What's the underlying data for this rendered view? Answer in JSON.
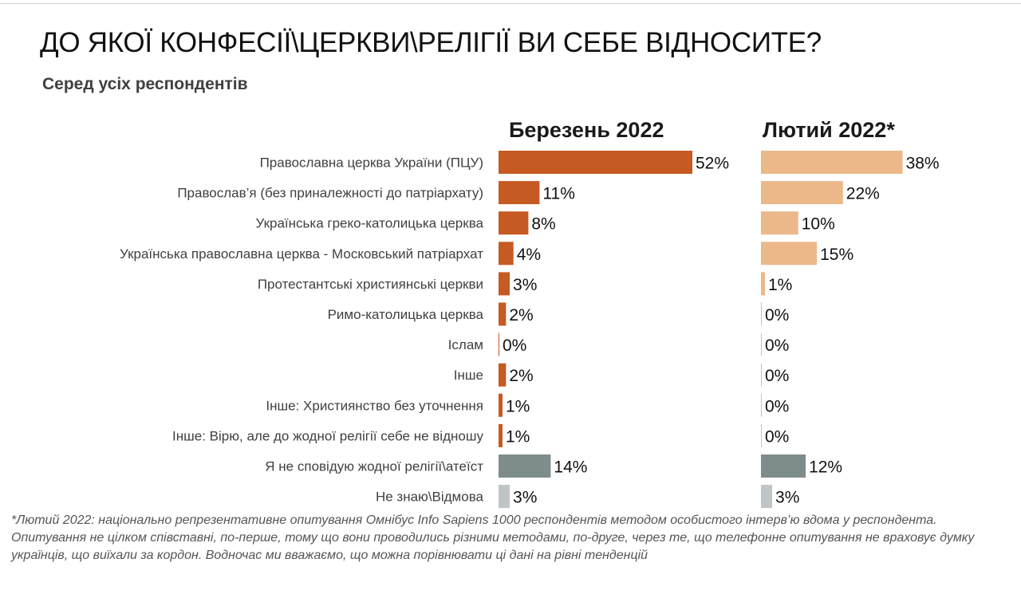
{
  "title": "ДО ЯКОЇ КОНФЕСІЇ\\ЦЕРКВИ\\РЕЛІГІЇ ВИ СЕБЕ ВІДНОСИТЕ?",
  "subtitle": "Серед усіх респондентів",
  "footnote": "*Лютий 2022: національно репрезентативне опитування Омнібус Info Sapiens 1000 респондентів методом особистого інтерв’ю вдома у респондента. Опитування не цілком співставні, по-перше, тому що вони проводились різними методами, по-друге, через те, що телефонне опитування не враховує думку українців, що виїхали за кордон. Водночас ми вважаємо, що можна порівнювати ці дані на рівні тенденцій",
  "chart_data": {
    "type": "bar",
    "orientation": "horizontal",
    "title": "ДО ЯКОЇ КОНФЕСІЇ\\ЦЕРКВИ\\РЕЛІГІЇ ВИ СЕБЕ ВІДНОСИТЕ?",
    "subtitle": "Серед усіх респондентів",
    "unit": "%",
    "xlim": [
      0,
      52
    ],
    "grid": false,
    "legend": "none",
    "categories": [
      "Православна церква України (ПЦУ)",
      "Православ’я (без приналежності до патріархату)",
      "Українська греко-католицька церква",
      "Українська православна церква - Московський патріархат",
      "Протестантські християнські церкви",
      "Римо-католицька церква",
      "Іслам",
      "Інше",
      "Інше: Християнство без уточнення",
      "Інше: Вірю, але до жодної релігії себе не відношу",
      "Я не сповідую жодної релігії\\атеїст",
      "Не знаю\\Відмова"
    ],
    "category_groups": [
      "religion",
      "religion",
      "religion",
      "religion",
      "religion",
      "religion",
      "religion",
      "religion",
      "religion",
      "religion",
      "none",
      "unknown"
    ],
    "series": [
      {
        "name": "Березень 2022",
        "values": [
          52,
          11,
          8,
          4,
          3,
          2,
          0,
          2,
          1,
          1,
          14,
          3
        ],
        "labels": [
          "52%",
          "11%",
          "8%",
          "4%",
          "3%",
          "2%",
          "0%",
          "2%",
          "1%",
          "1%",
          "14%",
          "3%"
        ],
        "colors": {
          "religion": "#c55a22",
          "none": "#7f8c8c",
          "unknown": "#bfc4c6"
        }
      },
      {
        "name": "Лютий 2022*",
        "values": [
          38,
          22,
          10,
          15,
          1,
          0,
          0,
          0,
          0,
          0,
          12,
          3
        ],
        "labels": [
          "38%",
          "22%",
          "10%",
          "15%",
          "1%",
          "0%",
          "0%",
          "0%",
          "0%",
          "0%",
          "12%",
          "3%"
        ],
        "colors": {
          "religion": "#ecb88a",
          "none": "#7f8c8c",
          "unknown": "#bfc4c6"
        }
      }
    ]
  }
}
